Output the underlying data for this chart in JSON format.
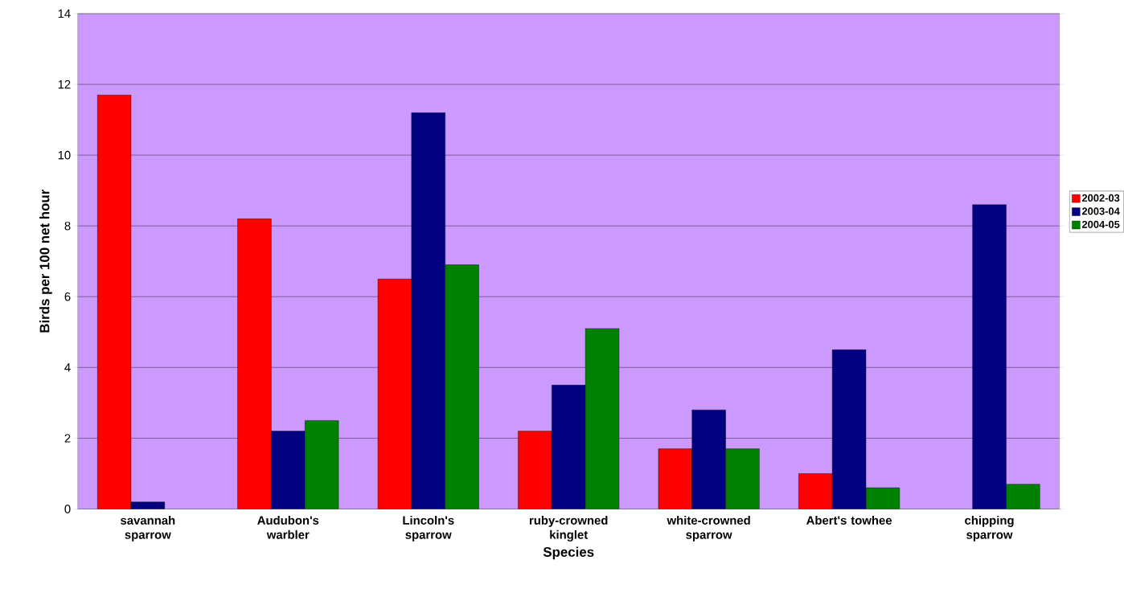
{
  "chart_data": {
    "type": "bar",
    "xlabel": "Species",
    "ylabel": "Birds per 100 net hour",
    "categories": [
      "savannah sparrow",
      "Audubon's warbler",
      "Lincoln's sparrow",
      "ruby-crowned kinglet",
      "white-crowned sparrow",
      "Abert's towhee",
      "chipping sparrow"
    ],
    "series": [
      {
        "name": "2002-03",
        "color": "#ff0000",
        "values": [
          11.7,
          8.2,
          6.5,
          2.2,
          1.7,
          1.0,
          null
        ]
      },
      {
        "name": "2003-04",
        "color": "#000080",
        "values": [
          0.2,
          2.2,
          11.2,
          3.5,
          2.8,
          4.5,
          8.6
        ]
      },
      {
        "name": "2004-05",
        "color": "#008000",
        "values": [
          null,
          2.5,
          6.9,
          5.1,
          1.7,
          0.6,
          0.7
        ]
      }
    ],
    "ylim": [
      0,
      14
    ],
    "yticks": [
      0,
      2,
      4,
      6,
      8,
      10,
      12,
      14
    ],
    "grid": "y",
    "legend": "right"
  }
}
